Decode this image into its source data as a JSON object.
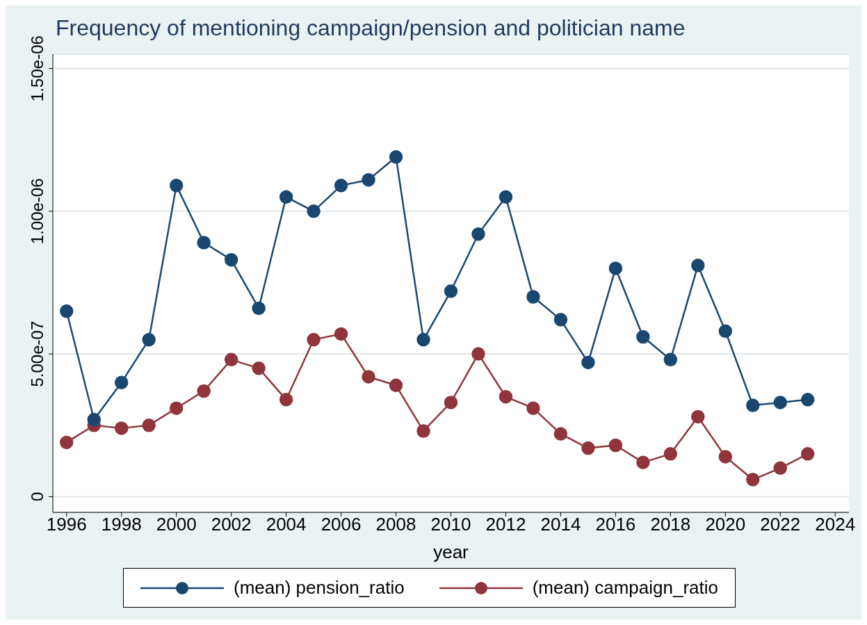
{
  "chart_data": {
    "type": "line",
    "title": "Frequency of mentioning campaign/pension and politician name",
    "xlabel": "year",
    "x": [
      1996,
      1997,
      1998,
      1999,
      2000,
      2001,
      2002,
      2003,
      2004,
      2005,
      2006,
      2007,
      2008,
      2009,
      2010,
      2011,
      2012,
      2013,
      2014,
      2015,
      2016,
      2017,
      2018,
      2019,
      2020,
      2021,
      2022,
      2023
    ],
    "series": [
      {
        "name": "(mean) pension_ratio",
        "color": "#1a476f",
        "values": [
          6.5e-07,
          2.7e-07,
          4e-07,
          5.5e-07,
          1.09e-06,
          8.9e-07,
          8.3e-07,
          6.6e-07,
          1.05e-06,
          1e-06,
          1.09e-06,
          1.11e-06,
          1.19e-06,
          5.5e-07,
          7.2e-07,
          9.2e-07,
          1.05e-06,
          7e-07,
          6.2e-07,
          4.7e-07,
          8e-07,
          5.6e-07,
          4.8e-07,
          8.1e-07,
          5.8e-07,
          3.2e-07,
          3.3e-07,
          3.4e-07
        ]
      },
      {
        "name": "(mean) campaign_ratio",
        "color": "#90353b",
        "values": [
          1.9e-07,
          2.5e-07,
          2.4e-07,
          2.5e-07,
          3.1e-07,
          3.7e-07,
          4.8e-07,
          4.5e-07,
          3.4e-07,
          5.5e-07,
          5.7e-07,
          4.2e-07,
          3.9e-07,
          2.3e-07,
          3.3e-07,
          5e-07,
          3.5e-07,
          3.1e-07,
          2.2e-07,
          1.7e-07,
          1.8e-07,
          1.2e-07,
          1.5e-07,
          2.8e-07,
          1.4e-07,
          6e-08,
          1e-07,
          1.5e-07
        ]
      }
    ],
    "xlim": [
      1995.5,
      2024.5
    ],
    "xticks": [
      1996,
      1998,
      2000,
      2002,
      2004,
      2006,
      2008,
      2010,
      2012,
      2014,
      2016,
      2018,
      2020,
      2022,
      2024
    ],
    "ylim": [
      -5.5e-08,
      1.55e-06
    ],
    "yticks": [
      0,
      {
        "value": 5e-07,
        "label": "5.00e-07"
      },
      {
        "value": 1e-06,
        "label": "1.00e-06"
      },
      {
        "value": 1.5e-06,
        "label": "1.50e-06"
      }
    ],
    "grid": "y",
    "legend": "bottom",
    "marker": "circle",
    "line_style": "solid"
  }
}
